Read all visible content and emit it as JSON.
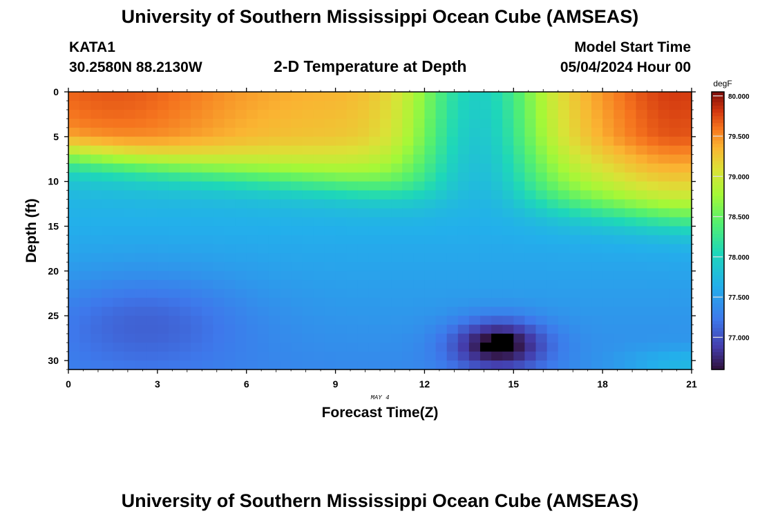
{
  "header": {
    "title": "University of Southern Mississippi Ocean Cube (AMSEAS)",
    "station": "KATA1",
    "coords": "30.2580N  88.2130W",
    "subtitle": "2-D Temperature at Depth",
    "model_start_label": "Model Start Time",
    "model_start_value": "05/04/2024 Hour 00"
  },
  "footer": {
    "title": "University of Southern Mississippi Ocean Cube (AMSEAS)"
  },
  "chart_data": {
    "type": "heatmap",
    "title": "2-D Temperature at Depth",
    "xlabel": "Forecast Time(Z)",
    "ylabel": "Depth (ft)",
    "x_date_label": "MAY 4",
    "xlim": [
      0,
      21
    ],
    "ylim": [
      0,
      31
    ],
    "y_inverted": true,
    "x_ticks": [
      0,
      3,
      6,
      9,
      12,
      15,
      18,
      21
    ],
    "y_ticks": [
      0,
      5,
      10,
      15,
      20,
      25,
      30
    ],
    "colorbar": {
      "label": "degF",
      "range": [
        76.6,
        80.05
      ],
      "ticks": [
        "80.000",
        "79.500",
        "79.000",
        "78.500",
        "78.000",
        "77.500",
        "77.000"
      ]
    },
    "temperature_field_description_values": {
      "surface_0_10ft_left": 79.3,
      "surface_near_14Z": 77.9,
      "surface_0_5ft_right": 79.8,
      "mid_15ft": 77.4,
      "mid_20ft": 77.1,
      "bottom_left_25ft": 76.9,
      "bottom_min_at_14.5Z_28ft": 76.6
    }
  }
}
